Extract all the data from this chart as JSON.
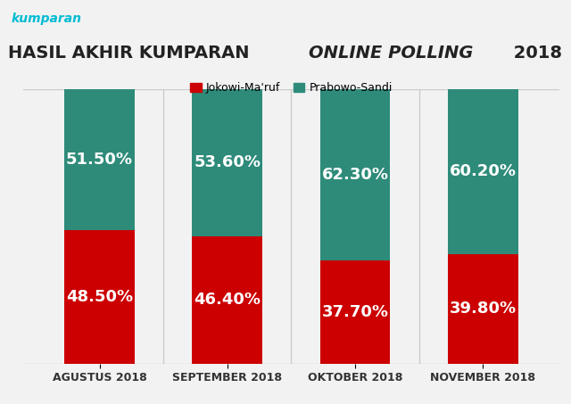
{
  "categories": [
    "AGUSTUS 2018",
    "SEPTEMBER 2018",
    "OKTOBER 2018",
    "NOVEMBER 2018"
  ],
  "jokowi_values": [
    48.5,
    46.4,
    37.7,
    39.8
  ],
  "prabowo_values": [
    51.5,
    53.6,
    62.3,
    60.2
  ],
  "jokowi_color": "#cc0000",
  "prabowo_color": "#2e8b7a",
  "jokowi_label": "Jokowi-Ma'ruf",
  "prabowo_label": "Prabowo-Sandi",
  "background_color": "#f2f2f2",
  "text_color_white": "#ffffff",
  "bar_width": 0.55,
  "label_fontsize": 13,
  "tick_fontsize": 9,
  "kumparan_color": "#00bcd4",
  "kumparan_text": "kumparan",
  "title_part1": "HASIL AKHIR KUMPARAN ",
  "title_part2": "ONLINE POLLING",
  "title_part3": " 2018"
}
